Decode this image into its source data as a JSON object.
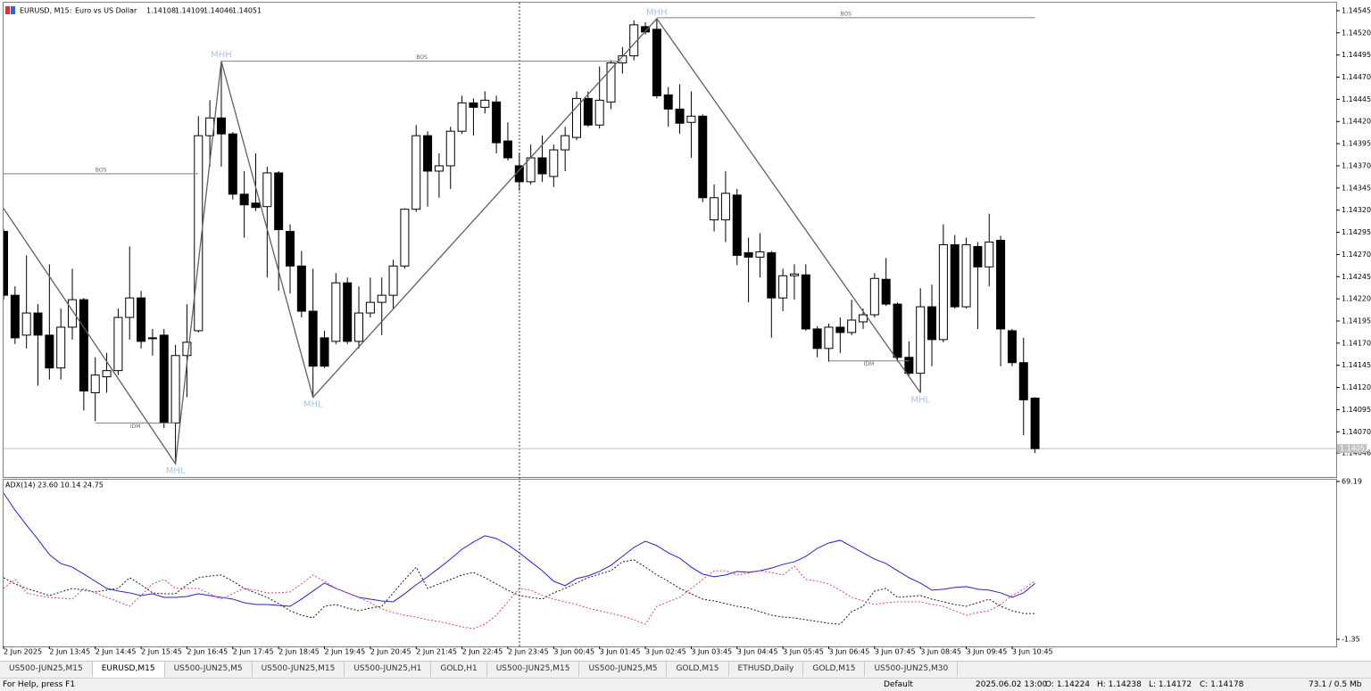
{
  "header": {
    "symbol": "EURUSD, M15:",
    "description": "Euro vs US Dollar",
    "quote": [
      1.14108,
      1.14109,
      1.14046,
      1.14051
    ]
  },
  "chart_data": [
    {
      "type": "candlestick",
      "categories": [
        "2 Jun 2025",
        null,
        null,
        null,
        "2 Jun 13:45",
        null,
        null,
        null,
        "2 Jun 14:45",
        null,
        null,
        null,
        "2 Jun 15:45",
        null,
        null,
        null,
        "2 Jun 16:45",
        null,
        null,
        null,
        "2 Jun 17:45",
        null,
        null,
        null,
        "2 Jun 18:45",
        null,
        null,
        null,
        "2 Jun 19:45",
        null,
        null,
        null,
        "2 Jun 20:45",
        null,
        null,
        null,
        "2 Jun 21:45",
        null,
        null,
        null,
        "2 Jun 22:45",
        null,
        null,
        null,
        "2 Jun 23:45",
        null,
        null,
        null,
        "3 Jun 00:45",
        null,
        null,
        null,
        "3 Jun 01:45",
        null,
        null,
        null,
        "3 Jun 02:45",
        null,
        null,
        null,
        "3 Jun 03:45",
        null,
        null,
        null,
        "3 Jun 04:45",
        null,
        null,
        null,
        "3 Jun 05:45",
        null,
        null,
        null,
        "3 Jun 06:45",
        null,
        null,
        null,
        "3 Jun 07:45",
        null,
        null,
        null,
        "3 Jun 08:45",
        null,
        null,
        null,
        "3 Jun 09:45",
        null,
        null,
        null,
        "3 Jun 10:45",
        null,
        null
      ],
      "open": [
        1.14296,
        1.14224,
        1.14179,
        1.14204,
        1.14179,
        1.14142,
        1.14188,
        1.14219,
        1.14114,
        1.14132,
        1.14139,
        1.14199,
        1.14221,
        1.14176,
        1.14179,
        1.1408,
        1.14156,
        1.14184,
        1.14404,
        1.14424,
        1.14406,
        1.14338,
        1.14328,
        1.14324,
        1.14362,
        1.14296,
        1.14257,
        1.14206,
        1.14176,
        1.14172,
        1.14238,
        1.14172,
        1.14204,
        1.14216,
        1.14224,
        1.14257,
        1.14321,
        1.14404,
        1.14364,
        1.1437,
        1.14409,
        1.14441,
        1.14436,
        1.14442,
        1.14398,
        1.1437,
        1.14352,
        1.14379,
        1.14358,
        1.14388,
        1.14402,
        1.14446,
        1.14416,
        1.14442,
        1.14486,
        1.14494,
        1.14527,
        1.14524,
        1.1445,
        1.14434,
        1.14419,
        1.14426,
        1.14309,
        1.14309,
        1.14337,
        1.14272,
        1.14267,
        1.14272,
        1.14221,
        1.14246,
        1.14247,
        1.14186,
        1.14164,
        1.14188,
        1.14182,
        1.14194,
        1.14202,
        1.14242,
        1.14214,
        1.14154,
        1.14136,
        1.14211,
        1.14174,
        1.14281,
        1.14211,
        1.14279,
        1.14256,
        1.14286,
        1.14184,
        1.14148,
        1.14108
      ],
      "high": [
        1.14299,
        1.14234,
        1.14269,
        1.14214,
        1.14259,
        1.14209,
        1.14254,
        1.14221,
        1.14154,
        1.14159,
        1.14209,
        1.14279,
        1.14229,
        1.14186,
        1.14186,
        1.14168,
        1.14214,
        1.14426,
        1.14444,
        1.14488,
        1.14408,
        1.14364,
        1.14384,
        1.14369,
        1.14364,
        1.14304,
        1.14274,
        1.14254,
        1.14184,
        1.14249,
        1.14244,
        1.14234,
        1.14244,
        1.14244,
        1.14264,
        1.14322,
        1.14416,
        1.14409,
        1.14384,
        1.14414,
        1.14449,
        1.14446,
        1.14454,
        1.14449,
        1.14419,
        1.14384,
        1.14394,
        1.14404,
        1.14394,
        1.14414,
        1.14454,
        1.14454,
        1.14482,
        1.14489,
        1.14504,
        1.14534,
        1.14532,
        1.14536,
        1.14459,
        1.14462,
        1.14454,
        1.14428,
        1.14349,
        1.14364,
        1.14344,
        1.14289,
        1.14294,
        1.14274,
        1.14254,
        1.14259,
        1.14259,
        1.14189,
        1.14192,
        1.14199,
        1.14219,
        1.14209,
        1.14249,
        1.14266,
        1.14216,
        1.14172,
        1.14232,
        1.14236,
        1.14304,
        1.14292,
        1.14289,
        1.14284,
        1.14316,
        1.14291,
        1.14186,
        1.14176,
        1.14109
      ],
      "low": [
        1.14219,
        1.14169,
        1.14164,
        1.14122,
        1.14129,
        1.14129,
        1.14174,
        1.14094,
        1.14082,
        1.14114,
        1.14134,
        1.14174,
        1.14164,
        1.14156,
        1.14074,
        1.14034,
        1.14109,
        1.14182,
        1.14369,
        1.14369,
        1.14332,
        1.14289,
        1.14319,
        1.14244,
        1.14229,
        1.14226,
        1.14199,
        1.14109,
        1.14142,
        1.14169,
        1.14169,
        1.14164,
        1.14199,
        1.14179,
        1.14209,
        1.14254,
        1.14318,
        1.14324,
        1.14334,
        1.14344,
        1.14406,
        1.14404,
        1.14429,
        1.14384,
        1.14376,
        1.14342,
        1.14349,
        1.14352,
        1.14346,
        1.14364,
        1.14399,
        1.14414,
        1.14412,
        1.14434,
        1.14474,
        1.14489,
        1.14518,
        1.14446,
        1.14414,
        1.14406,
        1.14379,
        1.14329,
        1.14296,
        1.14284,
        1.14258,
        1.14216,
        1.14244,
        1.14176,
        1.14206,
        1.14219,
        1.14184,
        1.14154,
        1.14149,
        1.14159,
        1.14179,
        1.14186,
        1.14199,
        1.14212,
        1.14149,
        1.14134,
        1.14114,
        1.14144,
        1.14171,
        1.14209,
        1.14209,
        1.14186,
        1.14234,
        1.14144,
        1.14144,
        1.14066,
        1.14046
      ],
      "close": [
        1.14224,
        1.14176,
        1.14204,
        1.14179,
        1.14142,
        1.14188,
        1.14219,
        1.14116,
        1.14134,
        1.14139,
        1.14199,
        1.14221,
        1.14172,
        1.14175,
        1.1408,
        1.14156,
        1.14171,
        1.14404,
        1.14424,
        1.14406,
        1.14338,
        1.14326,
        1.14323,
        1.14362,
        1.14298,
        1.14257,
        1.14206,
        1.14144,
        1.14144,
        1.14238,
        1.14172,
        1.14204,
        1.14216,
        1.14224,
        1.14257,
        1.14321,
        1.14404,
        1.14364,
        1.1437,
        1.14409,
        1.14441,
        1.14436,
        1.14444,
        1.14396,
        1.14379,
        1.14352,
        1.14379,
        1.14361,
        1.14388,
        1.14404,
        1.14446,
        1.14416,
        1.14444,
        1.14486,
        1.14494,
        1.14529,
        1.14521,
        1.14449,
        1.14434,
        1.14418,
        1.14426,
        1.14334,
        1.14334,
        1.14339,
        1.14269,
        1.14267,
        1.14273,
        1.14221,
        1.14246,
        1.14248,
        1.14186,
        1.14164,
        1.14188,
        1.14182,
        1.14196,
        1.14202,
        1.14243,
        1.14214,
        1.14154,
        1.14136,
        1.14211,
        1.14174,
        1.14281,
        1.14211,
        1.14281,
        1.14256,
        1.14284,
        1.14186,
        1.14148,
        1.14106,
        1.14051
      ],
      "up_color": "#ffffff",
      "down_color": "#000000",
      "ylim": [
        1.14019,
        1.14554
      ],
      "yticks": [
        1.14545,
        {
          "value": 1.1452,
          "label": "1.14520"
        },
        1.14495,
        {
          "value": 1.1447,
          "label": "1.14470"
        },
        1.14445,
        {
          "value": 1.1442,
          "label": "1.14420"
        },
        1.14395,
        {
          "value": 1.1437,
          "label": "1.14370"
        },
        1.14345,
        {
          "value": 1.1432,
          "label": "1.14320"
        },
        1.14295,
        {
          "value": 1.1427,
          "label": "1.14270"
        },
        1.14245,
        {
          "value": 1.1422,
          "label": "1.14220"
        },
        1.14195,
        {
          "value": 1.1417,
          "label": "1.14170"
        },
        1.14145,
        {
          "value": 1.1412,
          "label": "1.14120"
        },
        1.14095,
        {
          "value": 1.1407,
          "label": "1.14070"
        },
        1.14046
      ],
      "last_price": {
        "value": 1.14051,
        "label": "1.14051"
      },
      "zigzag": {
        "index": [
          0,
          15,
          19,
          27,
          57,
          80
        ],
        "values": [
          1.14322,
          1.14034,
          1.14488,
          1.14109,
          1.14536,
          1.14114
        ]
      },
      "levels": [
        {
          "label": "BOS",
          "value": 1.14361,
          "start": 0,
          "end": 17
        },
        {
          "label": "BOS",
          "value": 1.14488,
          "start": 19,
          "end": 54
        },
        {
          "label": "BOS",
          "value": 1.14537,
          "start": 57,
          "end": 90
        },
        {
          "label": "IDM",
          "value": 1.1408,
          "start": 8,
          "end": 15
        },
        {
          "label": "IDM",
          "value": 1.1415,
          "start": 72,
          "end": 79
        }
      ],
      "pivots": [
        {
          "label": "MHL",
          "index": 15,
          "value": 1.14034,
          "side": "below"
        },
        {
          "label": "MHH",
          "index": 19,
          "value": 1.14488,
          "side": "above"
        },
        {
          "label": "MHL",
          "index": 27,
          "value": 1.14109,
          "side": "below"
        },
        {
          "label": "MHH",
          "index": 57,
          "value": 1.14536,
          "side": "above"
        },
        {
          "label": "MHL",
          "index": 80,
          "value": 1.14114,
          "side": "below"
        }
      ]
    },
    {
      "type": "line",
      "title": "ADX(14) 23.60 10.14 24.75",
      "ylim": [
        -1.35,
        69.19
      ],
      "yticks": [
        69.19,
        -1.35
      ],
      "series": [
        {
          "name": "ADX",
          "color": "#2323c8",
          "dash": false,
          "values": [
            64.0,
            56.4,
            49.7,
            43.3,
            36.5,
            32.5,
            30.9,
            27.8,
            24.6,
            21.4,
            20.2,
            19.4,
            18.2,
            19.0,
            17.4,
            17.4,
            17.8,
            19.0,
            18.2,
            17.4,
            16.6,
            15.0,
            14.2,
            14.2,
            13.8,
            13.4,
            16.6,
            20.2,
            23.8,
            21.4,
            19.4,
            17.4,
            16.6,
            15.8,
            15.4,
            19.0,
            23.0,
            26.6,
            30.5,
            34.5,
            38.9,
            42.1,
            44.9,
            43.7,
            40.9,
            37.3,
            33.3,
            29.3,
            24.6,
            22.6,
            25.8,
            27.0,
            29.0,
            31.7,
            35.7,
            39.7,
            42.5,
            40.5,
            37.3,
            34.9,
            30.9,
            27.8,
            26.6,
            27.4,
            29.0,
            28.6,
            29.3,
            30.5,
            32.1,
            33.3,
            35.7,
            39.3,
            41.7,
            42.9,
            40.1,
            37.3,
            34.5,
            32.5,
            29.3,
            26.2,
            23.8,
            20.6,
            21.0,
            21.8,
            22.2,
            21.0,
            20.6,
            19.4,
            17.4,
            19.4,
            23.6
          ]
        },
        {
          "name": "+DI",
          "color": "#1a1a1a",
          "dash": true,
          "values": [
            26.2,
            23.4,
            21.4,
            19.8,
            18.2,
            19.8,
            21.4,
            20.6,
            19.8,
            20.6,
            21.4,
            26.2,
            23.0,
            19.4,
            19.0,
            19.0,
            23.0,
            26.2,
            26.9,
            27.4,
            24.6,
            21.4,
            19.4,
            17.4,
            14.6,
            11.4,
            9.4,
            8.2,
            13.4,
            14.2,
            12.6,
            11.4,
            12.6,
            13.4,
            19.4,
            25.4,
            30.9,
            21.4,
            23.4,
            25.4,
            27.4,
            28.5,
            26.2,
            23.4,
            20.6,
            18.2,
            17.4,
            16.6,
            19.4,
            21.4,
            23.8,
            26.2,
            27.8,
            29.3,
            33.3,
            34.1,
            30.9,
            27.4,
            24.6,
            21.4,
            19.0,
            16.6,
            15.8,
            14.6,
            13.4,
            12.6,
            11.0,
            9.4,
            8.6,
            8.2,
            7.4,
            6.6,
            5.8,
            5.4,
            11.0,
            13.4,
            20.2,
            21.4,
            17.4,
            17.8,
            18.2,
            16.6,
            15.4,
            14.2,
            13.4,
            15.0,
            16.6,
            13.4,
            11.4,
            10.2,
            10.14
          ]
        },
        {
          "name": "-DI",
          "color": "#e8407a",
          "dash": true,
          "values": [
            21.4,
            25.4,
            19.4,
            18.2,
            17.4,
            17.0,
            16.6,
            21.4,
            19.4,
            17.4,
            15.4,
            13.4,
            18.2,
            23.4,
            25.4,
            21.4,
            21.4,
            21.4,
            19.0,
            16.6,
            19.0,
            21.4,
            20.6,
            19.4,
            19.4,
            19.8,
            23.4,
            27.4,
            24.6,
            21.4,
            19.4,
            17.4,
            15.0,
            12.2,
            10.6,
            9.4,
            8.6,
            7.4,
            6.6,
            5.4,
            4.2,
            3.4,
            5.4,
            9.4,
            15.4,
            21.4,
            20.6,
            18.2,
            16.6,
            15.4,
            14.2,
            12.6,
            11.4,
            10.2,
            9.0,
            7.4,
            5.4,
            13.4,
            15.4,
            17.4,
            21.4,
            25.4,
            29.3,
            29.3,
            27.4,
            28.2,
            29.3,
            28.5,
            27.4,
            31.3,
            25.4,
            24.6,
            23.4,
            20.6,
            17.4,
            15.8,
            14.2,
            15.0,
            15.4,
            15.4,
            15.4,
            14.2,
            13.4,
            11.4,
            9.4,
            10.6,
            11.4,
            14.2,
            18.2,
            21.0,
            24.75
          ]
        }
      ]
    }
  ],
  "tabs": [
    {
      "label": "US500-JUN25,M15",
      "active": false
    },
    {
      "label": "EURUSD,M15",
      "active": true
    },
    {
      "label": "US500-JUN25,M5",
      "active": false
    },
    {
      "label": "US500-JUN25,M15",
      "active": false
    },
    {
      "label": "US500-JUN25,H1",
      "active": false
    },
    {
      "label": "GOLD,H1",
      "active": false
    },
    {
      "label": "US500-JUN25,M15",
      "active": false
    },
    {
      "label": "US500-JUN25,M5",
      "active": false
    },
    {
      "label": "GOLD,M15",
      "active": false
    },
    {
      "label": "ETHUSD,Daily",
      "active": false
    },
    {
      "label": "GOLD,M15",
      "active": false
    },
    {
      "label": "US500-JUN25,M30",
      "active": false
    }
  ],
  "status_bar": {
    "help": "For Help, press F1",
    "profile": "Default",
    "time": "2025.06.02 13:00",
    "open": "O: 1.14224",
    "high": "H: 1.14238",
    "low": "L: 1.14172",
    "close": "C: 1.14178",
    "memory": "73.1 / 0.5 Mb"
  }
}
